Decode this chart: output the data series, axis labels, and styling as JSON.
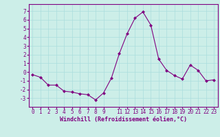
{
  "x": [
    0,
    1,
    2,
    3,
    4,
    5,
    6,
    7,
    8,
    9,
    10,
    11,
    12,
    13,
    14,
    15,
    16,
    17,
    18,
    19,
    20,
    21,
    22,
    23
  ],
  "y": [
    -0.3,
    -0.6,
    -1.5,
    -1.5,
    -2.2,
    -2.3,
    -2.5,
    -2.6,
    -3.2,
    -2.4,
    -0.7,
    2.1,
    4.4,
    6.2,
    6.9,
    5.4,
    1.5,
    0.2,
    -0.4,
    -0.8,
    0.8,
    0.2,
    -1.0,
    -0.9
  ],
  "line_color": "#800080",
  "marker": "D",
  "marker_size": 2,
  "bg_color": "#cceee8",
  "grid_color": "#aadddd",
  "xlabel": "Windchill (Refroidissement éolien,°C)",
  "xlim": [
    -0.5,
    23.5
  ],
  "ylim": [
    -4.0,
    7.8
  ],
  "yticks": [
    -3,
    -2,
    -1,
    0,
    1,
    2,
    3,
    4,
    5,
    6,
    7
  ],
  "xticks": [
    0,
    1,
    2,
    3,
    4,
    5,
    6,
    7,
    8,
    9,
    11,
    12,
    13,
    14,
    15,
    16,
    17,
    18,
    19,
    20,
    21,
    22,
    23
  ],
  "tick_color": "#800080",
  "label_color": "#800080",
  "spine_color": "#800080",
  "tick_fontsize": 5.5,
  "xlabel_fontsize": 6.0
}
